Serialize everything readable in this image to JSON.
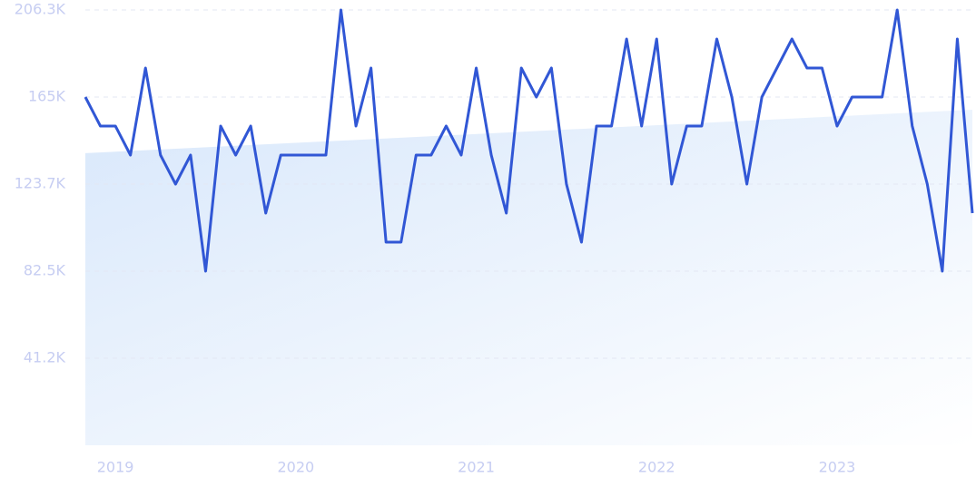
{
  "chart_data": {
    "type": "line",
    "categories": [
      null,
      null,
      "2019",
      null,
      null,
      null,
      null,
      null,
      null,
      null,
      null,
      null,
      null,
      null,
      "2020",
      null,
      null,
      null,
      null,
      null,
      null,
      null,
      null,
      null,
      null,
      null,
      "2021",
      null,
      null,
      null,
      null,
      null,
      null,
      null,
      null,
      null,
      null,
      null,
      "2022",
      null,
      null,
      null,
      null,
      null,
      null,
      null,
      null,
      null,
      null,
      null,
      "2023",
      null,
      null,
      null,
      null,
      null,
      null,
      null,
      null,
      null
    ],
    "series": [
      {
        "color": "#3157d5",
        "values": [
          165000,
          151250,
          151250,
          137500,
          178750,
          137500,
          123750,
          137500,
          82500,
          151250,
          137500,
          151250,
          110000,
          137500,
          137500,
          137500,
          137500,
          206250,
          151250,
          178750,
          96250,
          96250,
          137500,
          137500,
          151250,
          137500,
          178750,
          137500,
          110000,
          178750,
          165000,
          178750,
          123750,
          96250,
          151250,
          151250,
          192500,
          151250,
          192500,
          123750,
          151250,
          151250,
          192500,
          165000,
          123750,
          165000,
          178750,
          192500,
          178750,
          178750,
          151250,
          165000,
          165000,
          165000,
          206250,
          151250,
          123750,
          82500,
          192500,
          110000
        ]
      }
    ],
    "trend": {
      "color": "#d9e8fb",
      "values": [
        138400,
        159000
      ]
    },
    "ylim": [
      0,
      206250
    ],
    "yticks": [
      {
        "value": 41250,
        "label": "41.2K"
      },
      {
        "value": 82500,
        "label": "82.5K"
      },
      {
        "value": 123750,
        "label": "123.7K"
      },
      {
        "value": 165000,
        "label": "165K"
      },
      {
        "value": 206250,
        "label": "206.3K"
      }
    ],
    "grid": true
  }
}
